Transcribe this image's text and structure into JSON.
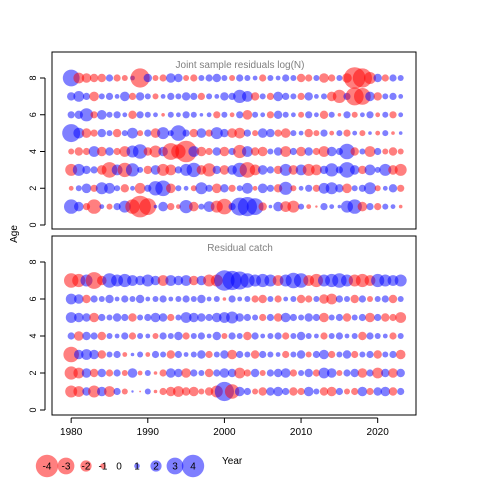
{
  "chart_data": [
    {
      "type": "bubble",
      "title": "Joint sample residuals log(N)",
      "ylabel": "Age",
      "xlim": [
        1977.5,
        2025.0
      ],
      "ylim": [
        -0.5,
        9.0
      ],
      "yticks": [
        0,
        2,
        4,
        6,
        8
      ],
      "ages": [
        1,
        2,
        3,
        4,
        5,
        6,
        7,
        8
      ],
      "years": [
        1980,
        2023
      ],
      "residuals": [
        [
          1.2,
          0.8,
          -0.6,
          -1.2,
          0.4,
          -0.5,
          0.6,
          1.0,
          -1.2,
          -1.8,
          -1.4,
          0.3,
          0.8,
          -0.6,
          -0.4,
          1.1,
          -0.8,
          0.5,
          0.9,
          -1.0,
          -1.3,
          0.6,
          1.5,
          1.6,
          1.4,
          -0.7,
          0.3,
          0.8,
          -0.9,
          -1.0,
          0.5,
          -0.4,
          -0.2,
          0.6,
          0.4,
          0.3,
          1.0,
          1.2,
          -0.8,
          0.6,
          -0.6,
          0.5,
          0.4,
          -0.3
        ],
        [
          -0.4,
          0.5,
          0.8,
          -0.6,
          1.0,
          0.9,
          0.5,
          -0.7,
          0.4,
          -0.9,
          0.6,
          1.2,
          1.3,
          -0.8,
          0.5,
          0.4,
          -0.5,
          1.0,
          0.6,
          -0.8,
          0.7,
          -0.6,
          0.5,
          0.9,
          -0.4,
          0.8,
          0.6,
          -0.7,
          1.1,
          -0.5,
          0.4,
          0.6,
          -0.6,
          0.9,
          1.0,
          0.7,
          -0.8,
          0.5,
          0.6,
          1.0,
          -0.5,
          0.4,
          0.7,
          -0.6
        ],
        [
          -1.0,
          1.0,
          0.7,
          0.6,
          -0.8,
          -1.3,
          0.9,
          -1.2,
          1.1,
          0.5,
          -0.7,
          0.8,
          -1.0,
          -0.9,
          0.6,
          1.0,
          1.2,
          -0.8,
          -1.1,
          0.7,
          -0.8,
          0.8,
          1.2,
          -1.3,
          -0.9,
          0.8,
          0.6,
          -0.7,
          1.0,
          -0.8,
          0.9,
          -1.0,
          -0.9,
          0.7,
          1.1,
          0.6,
          1.3,
          0.8,
          -0.7,
          0.9,
          0.5,
          1.0,
          -0.8,
          -1.0
        ],
        [
          -0.5,
          -0.7,
          -0.6,
          0.9,
          -0.8,
          0.7,
          -0.6,
          -0.9,
          1.0,
          1.2,
          -0.7,
          -1.0,
          0.8,
          -1.4,
          -1.2,
          -1.8,
          0.9,
          -0.8,
          -0.6,
          0.7,
          -0.8,
          0.6,
          -1.1,
          0.9,
          -0.7,
          -0.8,
          0.5,
          0.7,
          -0.9,
          0.6,
          -0.8,
          0.7,
          -0.6,
          -0.9,
          0.8,
          0.6,
          1.3,
          -0.7,
          0.5,
          -0.9,
          0.6,
          -0.5,
          -0.7,
          -0.5
        ],
        [
          1.5,
          0.9,
          -0.8,
          -0.6,
          0.7,
          0.5,
          -0.7,
          0.5,
          0.9,
          -0.5,
          0.6,
          -0.8,
          1.0,
          0.5,
          1.3,
          0.6,
          -0.7,
          0.8,
          -0.6,
          1.0,
          0.7,
          -0.8,
          -0.9,
          0.6,
          -0.5,
          0.8,
          0.7,
          -0.6,
          -0.8,
          0.5,
          0.4,
          -0.7,
          -0.5,
          0.6,
          -0.4,
          0.5,
          -0.6,
          0.4,
          -0.5,
          0.3,
          -0.4,
          0.5,
          -0.3,
          0.3
        ],
        [
          0.6,
          0.7,
          1.1,
          -0.6,
          0.8,
          0.5,
          0.6,
          0.4,
          -0.7,
          0.6,
          0.5,
          0.4,
          -0.3,
          0.5,
          0.4,
          0.6,
          0.5,
          0.3,
          0.4,
          -0.6,
          0.5,
          -0.4,
          0.6,
          -0.8,
          0.5,
          0.4,
          -0.6,
          0.7,
          0.5,
          0.4,
          -0.5,
          0.6,
          0.4,
          -0.7,
          0.5,
          -0.3,
          0.6,
          -0.5,
          0.4,
          0.6,
          -0.4,
          0.5,
          -0.6,
          0.4
        ],
        [
          0.7,
          0.9,
          0.6,
          -0.8,
          0.5,
          0.6,
          0.4,
          0.8,
          -0.6,
          0.7,
          0.5,
          -0.5,
          0.4,
          0.6,
          0.5,
          0.7,
          0.6,
          -0.6,
          0.5,
          0.4,
          0.7,
          0.6,
          1.1,
          0.9,
          -0.7,
          0.5,
          -0.6,
          0.8,
          0.6,
          0.5,
          -0.6,
          0.7,
          0.4,
          0.5,
          -0.8,
          -1.1,
          0.6,
          -1.5,
          -1.4,
          0.8,
          -0.7,
          0.5,
          0.6,
          0.4
        ],
        [
          1.4,
          -0.9,
          -0.8,
          -0.7,
          -0.7,
          0.6,
          -0.6,
          -0.5,
          0.4,
          -1.6,
          0.7,
          -0.5,
          -0.6,
          0.8,
          0.7,
          -0.5,
          -0.6,
          0.5,
          0.6,
          0.7,
          0.5,
          -0.5,
          0.6,
          0.5,
          0.4,
          -0.6,
          0.5,
          0.4,
          0.6,
          0.5,
          -0.7,
          -0.6,
          0.5,
          -0.8,
          -0.6,
          0.5,
          -0.8,
          -1.8,
          -1.6,
          -1.0,
          0.7,
          -0.6,
          0.6,
          0.5
        ]
      ]
    },
    {
      "type": "bubble",
      "title": "Residual catch",
      "xlabel": "Year",
      "xlim": [
        1977.5,
        2025.0
      ],
      "ylim": [
        -0.5,
        9.0
      ],
      "xticks": [
        1980,
        1990,
        2000,
        2010,
        2020
      ],
      "yticks": [
        0,
        2,
        4,
        6,
        8
      ],
      "ages": [
        1,
        2,
        3,
        4,
        5,
        6,
        7
      ],
      "years": [
        1980,
        2023
      ],
      "residuals": [
        [
          -1.0,
          -0.9,
          0.7,
          -1.0,
          0.8,
          -0.9,
          0.6,
          -0.5,
          0.2,
          -0.1,
          0.5,
          -0.3,
          -0.6,
          -0.8,
          -0.9,
          -0.7,
          -0.8,
          -0.5,
          -0.7,
          -1.0,
          1.6,
          -1.2,
          0.8,
          0.6,
          -0.5,
          -0.7,
          0.7,
          0.8,
          0.6,
          -0.7,
          -0.6,
          0.8,
          0.5,
          -0.7,
          -0.8,
          0.6,
          -0.5,
          -0.6,
          0.8,
          -0.6,
          0.7,
          0.8,
          -0.7,
          0.6
        ],
        [
          -1.1,
          -0.9,
          0.8,
          -0.7,
          0.7,
          -0.6,
          0.6,
          -0.5,
          0.8,
          -0.4,
          0.5,
          -0.3,
          -0.6,
          0.8,
          0.7,
          -0.8,
          0.6,
          0.5,
          -0.7,
          0.6,
          0.8,
          0.7,
          -0.9,
          -0.6,
          0.7,
          -0.5,
          0.6,
          0.7,
          0.8,
          -0.6,
          0.5,
          0.7,
          -0.6,
          0.9,
          0.8,
          -0.5,
          0.6,
          0.7,
          -0.8,
          0.6,
          -0.9,
          0.7,
          -0.8,
          0.7
        ],
        [
          -1.3,
          0.8,
          0.9,
          0.8,
          -0.7,
          0.5,
          0.6,
          -0.4,
          0.3,
          0.5,
          -0.4,
          0.6,
          0.5,
          -0.7,
          0.6,
          0.4,
          0.5,
          0.7,
          -0.6,
          0.5,
          0.7,
          -0.8,
          0.6,
          0.5,
          -0.7,
          0.6,
          0.5,
          0.4,
          -0.6,
          0.5,
          0.7,
          -0.5,
          0.6,
          0.8,
          -0.6,
          0.5,
          0.7,
          -0.6,
          0.5,
          0.6,
          -0.7,
          0.5,
          0.6,
          -0.8
        ],
        [
          0.6,
          -0.8,
          0.7,
          0.6,
          -0.7,
          0.5,
          0.4,
          0.6,
          -0.6,
          0.5,
          0.4,
          -0.5,
          0.6,
          0.5,
          0.7,
          -0.6,
          0.5,
          0.6,
          0.4,
          0.7,
          -0.5,
          0.6,
          0.5,
          -0.7,
          0.6,
          0.4,
          0.5,
          0.6,
          -0.6,
          0.5,
          0.7,
          0.5,
          0.4,
          -0.6,
          0.5,
          0.6,
          0.4,
          0.5,
          -0.7,
          0.6,
          0.5,
          0.4,
          -0.6,
          0.5
        ],
        [
          0.9,
          0.8,
          0.7,
          -0.8,
          0.6,
          0.5,
          0.7,
          0.6,
          -0.7,
          0.5,
          0.6,
          0.8,
          0.7,
          -0.6,
          0.5,
          0.9,
          0.8,
          0.7,
          0.6,
          0.8,
          0.9,
          1.0,
          0.7,
          0.6,
          0.5,
          -0.6,
          0.6,
          -0.7,
          0.8,
          0.6,
          0.5,
          0.7,
          0.6,
          -0.8,
          0.5,
          0.6,
          -0.7,
          0.5,
          0.6,
          -0.8,
          0.6,
          -0.7,
          -0.6,
          -0.9
        ],
        [
          0.9,
          0.8,
          -0.7,
          0.6,
          0.5,
          0.7,
          0.4,
          0.6,
          0.5,
          0.7,
          0.4,
          0.5,
          0.6,
          0.4,
          0.5,
          0.6,
          0.5,
          0.7,
          0.4,
          0.5,
          -0.3,
          0.6,
          0.4,
          0.5,
          -0.6,
          -0.7,
          0.5,
          -0.6,
          0.4,
          0.5,
          -0.7,
          -0.6,
          0.5,
          -0.8,
          -0.9,
          0.6,
          0.5,
          -0.7,
          0.6,
          -0.5,
          0.5,
          0.6,
          -0.7,
          0.5
        ],
        [
          -1.2,
          -1.1,
          1.0,
          -1.4,
          -0.8,
          1.2,
          1.0,
          1.1,
          0.9,
          0.8,
          1.0,
          0.8,
          -0.9,
          0.9,
          0.8,
          0.9,
          -0.8,
          0.8,
          -1.0,
          -1.0,
          1.7,
          1.6,
          1.5,
          1.2,
          1.0,
          1.1,
          1.0,
          -0.9,
          1.0,
          1.3,
          1.2,
          -0.9,
          -1.1,
          1.0,
          1.1,
          1.2,
          1.0,
          -1.0,
          -1.1,
          -0.9,
          1.1,
          1.0,
          0.9,
          1.0
        ]
      ]
    }
  ],
  "legend": {
    "items": [
      "-4",
      "-3",
      "-2",
      "-1",
      "0",
      "1",
      "2",
      "3",
      "4"
    ],
    "values": [
      -4,
      -3,
      -2,
      -1,
      0,
      1,
      2,
      3,
      4
    ],
    "negative_color": "#ff0000",
    "positive_color": "#0000ff"
  },
  "colors": {
    "negative": "#ff0000",
    "positive": "#0000ff",
    "axis": "#000000",
    "title_text": "#808080"
  }
}
